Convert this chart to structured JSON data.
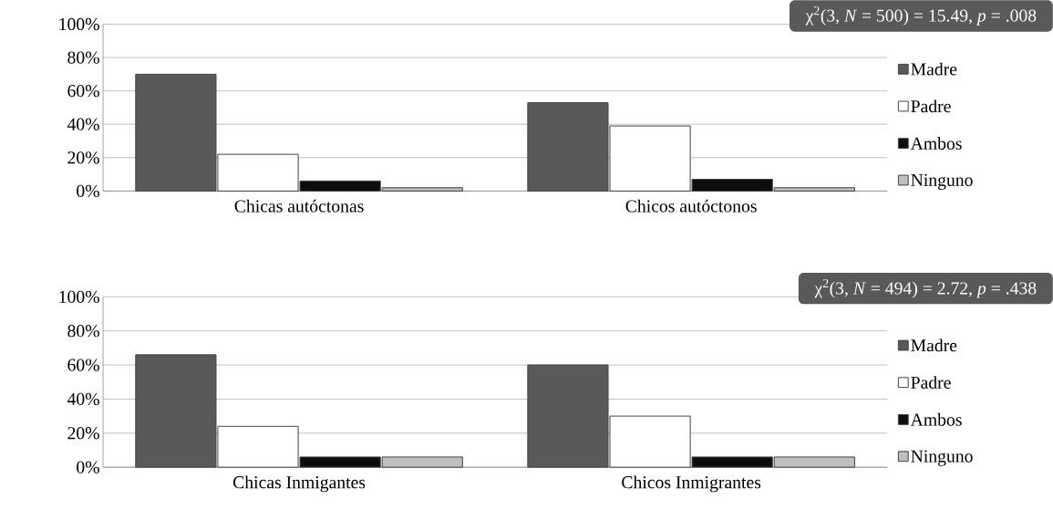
{
  "chart_data": [
    {
      "type": "bar",
      "categories": [
        "Chicas autóctonas",
        "Chicos autóctonos"
      ],
      "series": [
        {
          "name": "Madre",
          "color": "#595959",
          "values": [
            70,
            53
          ]
        },
        {
          "name": "Padre",
          "color": "#ffffff",
          "values": [
            22,
            39
          ]
        },
        {
          "name": "Ambos",
          "color": "#0d0d0d",
          "values": [
            6,
            7
          ]
        },
        {
          "name": "Ninguno",
          "color": "#bfbfbf",
          "values": [
            2,
            2
          ]
        }
      ],
      "ylim": [
        0,
        100
      ],
      "yticks": [
        {
          "value": 0,
          "label": "0%"
        },
        {
          "value": 20,
          "label": "20%"
        },
        {
          "value": 40,
          "label": "40%"
        },
        {
          "value": 60,
          "label": "60%"
        },
        {
          "value": 80,
          "label": "80%"
        },
        {
          "value": 100,
          "label": "100%"
        }
      ],
      "grid": "y",
      "legend": "right",
      "annotations": [
        "χ$^{2}$(3, *N* = 500) = 15.49, *p* = .008"
      ]
    },
    {
      "type": "bar",
      "categories": [
        "Chicas Inmigantes",
        "Chicos Inmigrantes"
      ],
      "series": [
        {
          "name": "Madre",
          "color": "#595959",
          "values": [
            66,
            60
          ]
        },
        {
          "name": "Padre",
          "color": "#ffffff",
          "values": [
            24,
            30
          ]
        },
        {
          "name": "Ambos",
          "color": "#0d0d0d",
          "values": [
            6,
            6
          ]
        },
        {
          "name": "Ninguno",
          "color": "#bfbfbf",
          "values": [
            6,
            6
          ]
        }
      ],
      "ylim": [
        0,
        100
      ],
      "yticks": [
        {
          "value": 0,
          "label": "0%"
        },
        {
          "value": 20,
          "label": "20%"
        },
        {
          "value": 40,
          "label": "40%"
        },
        {
          "value": 60,
          "label": "60%"
        },
        {
          "value": 80,
          "label": "80%"
        },
        {
          "value": 100,
          "label": "100%"
        }
      ],
      "grid": "y",
      "legend": "right",
      "annotations": [
        "χ$^{2}$(3, *N* = 494) = 2.72, *p* = .438"
      ]
    }
  ]
}
